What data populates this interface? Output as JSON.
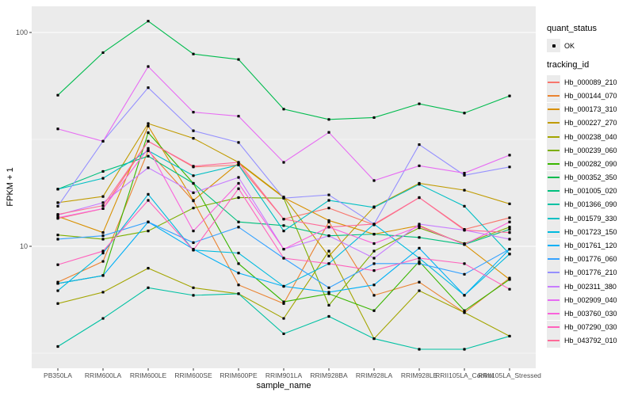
{
  "figure": {
    "panel_background": "#EBEBEB",
    "grid_color": "#FFFFFF",
    "axis_text_color": "#4D4D4D",
    "point_color": "#000000"
  },
  "axes": {
    "x_title": "sample_name",
    "y_title": "FPKM + 1",
    "y_ticks": [
      {
        "label": "100",
        "value": 100
      },
      {
        "label": "10",
        "value": 10
      }
    ]
  },
  "legend": {
    "quant_status": {
      "title": "quant_status",
      "items": [
        {
          "label": "OK",
          "glyph": "black-point"
        }
      ]
    },
    "tracking_id": {
      "title": "tracking_id"
    }
  },
  "chart_data": {
    "type": "line",
    "title": "",
    "xlabel": "sample_name",
    "ylabel": "FPKM + 1",
    "y_scale": "log10",
    "ylim": [
      2.7,
      132
    ],
    "y_major_gridlines": [
      10,
      100
    ],
    "y_minor_gridlines": [
      3.162,
      31.62
    ],
    "legend_position": "right",
    "point_shape": "small-black-square",
    "categories": [
      "PB350LA",
      "RRIM600LA",
      "RRIM600LE",
      "RRIM600SE",
      "RRIM600PE",
      "RRIM901LA",
      "RRIM928BA",
      "RRIM928LA",
      "RRIM928LE",
      "RRII105LA_Control",
      "RRII105LA_Stressed"
    ],
    "series": [
      {
        "name": "Hb_000089_210",
        "color": "#F8766D",
        "values": [
          13.5,
          15.0,
          31.0,
          23.5,
          24.0,
          13.4,
          15.1,
          12.6,
          16.9,
          12.0,
          13.6
        ]
      },
      {
        "name": "Hb_000144_070",
        "color": "#EA8331",
        "values": [
          6.8,
          8.5,
          28.0,
          16.3,
          6.6,
          5.4,
          13.0,
          5.9,
          6.8,
          4.9,
          7.1
        ]
      },
      {
        "name": "Hb_000173_310",
        "color": "#D89000",
        "values": [
          13.8,
          11.6,
          36.5,
          16.4,
          24.5,
          16.9,
          13.2,
          11.4,
          12.5,
          10.2,
          7.0
        ]
      },
      {
        "name": "Hb_000227_270",
        "color": "#C09B00",
        "values": [
          16.0,
          17.1,
          37.5,
          32.0,
          24.7,
          17.0,
          9.0,
          15.3,
          19.7,
          18.3,
          15.8
        ]
      },
      {
        "name": "Hb_000238_040",
        "color": "#A3A500",
        "values": [
          5.4,
          6.1,
          7.9,
          6.4,
          6.0,
          4.6,
          9.5,
          3.7,
          6.2,
          4.9,
          3.8
        ]
      },
      {
        "name": "Hb_000239_060",
        "color": "#7CAE00",
        "values": [
          11.3,
          10.8,
          11.8,
          15.1,
          16.9,
          16.8,
          5.3,
          9.5,
          12.2,
          10.3,
          12.3
        ]
      },
      {
        "name": "Hb_000282_090",
        "color": "#39B600",
        "values": [
          6.7,
          7.3,
          34.0,
          19.7,
          8.3,
          5.5,
          6.0,
          5.0,
          8.5,
          5.0,
          7.0
        ]
      },
      {
        "name": "Hb_000352_350",
        "color": "#00BB4E",
        "values": [
          50.9,
          80.5,
          113.0,
          79.3,
          74.8,
          43.8,
          39.2,
          40.0,
          46.4,
          42.0,
          50.5
        ]
      },
      {
        "name": "Hb_001005_020",
        "color": "#00BF7D",
        "values": [
          18.5,
          22.4,
          26.4,
          19.7,
          13.0,
          12.5,
          11.2,
          11.4,
          11.0,
          10.2,
          12.0
        ]
      },
      {
        "name": "Hb_001366_090",
        "color": "#00C1A3",
        "values": [
          3.4,
          4.6,
          6.4,
          5.9,
          6.0,
          3.9,
          4.7,
          3.7,
          3.3,
          3.3,
          3.8
        ]
      },
      {
        "name": "Hb_001579_330",
        "color": "#00BFC4",
        "values": [
          18.5,
          20.8,
          28.0,
          21.4,
          24.0,
          11.8,
          16.4,
          15.2,
          19.5,
          15.4,
          9.2
        ]
      },
      {
        "name": "Hb_001723_150",
        "color": "#00BADE",
        "values": [
          6.2,
          9.3,
          17.5,
          9.6,
          9.3,
          6.5,
          8.3,
          12.7,
          8.8,
          5.9,
          9.2
        ]
      },
      {
        "name": "Hb_001761_120",
        "color": "#00B0F6",
        "values": [
          6.7,
          7.3,
          13.0,
          9.7,
          7.5,
          6.5,
          6.1,
          6.6,
          9.8,
          5.9,
          9.7
        ]
      },
      {
        "name": "Hb_001776_060",
        "color": "#35A2FF",
        "values": [
          10.8,
          11.2,
          13.0,
          10.4,
          12.3,
          8.8,
          6.4,
          8.3,
          8.3,
          7.4,
          9.7
        ]
      },
      {
        "name": "Hb_001776_210",
        "color": "#9590FF",
        "values": [
          15.4,
          31.0,
          55.2,
          34.7,
          30.6,
          16.8,
          17.4,
          12.7,
          29.9,
          21.5,
          23.5
        ]
      },
      {
        "name": "Hb_002311_380",
        "color": "#C77CFF",
        "values": [
          14.0,
          16.0,
          23.3,
          17.8,
          21.0,
          9.7,
          11.2,
          8.8,
          12.7,
          11.9,
          10.8
        ]
      },
      {
        "name": "Hb_002909_040",
        "color": "#E76BF3",
        "values": [
          35.4,
          31.0,
          69.3,
          42.4,
          40.6,
          24.7,
          34.1,
          20.3,
          23.8,
          22.0,
          26.7
        ]
      },
      {
        "name": "Hb_003760_030",
        "color": "#FA62DB",
        "values": [
          13.6,
          15.0,
          28.7,
          11.8,
          19.7,
          9.7,
          12.3,
          10.3,
          12.4,
          10.2,
          13.0
        ]
      },
      {
        "name": "Hb_007290_030",
        "color": "#FF62BC",
        "values": [
          8.2,
          9.5,
          16.4,
          9.6,
          18.6,
          8.8,
          8.3,
          7.7,
          8.8,
          8.3,
          6.3
        ]
      },
      {
        "name": "Hb_043792_010",
        "color": "#FF6A98",
        "values": [
          14.1,
          15.5,
          31.0,
          23.7,
          24.7,
          13.4,
          12.3,
          12.7,
          16.9,
          11.9,
          11.6
        ]
      }
    ]
  }
}
